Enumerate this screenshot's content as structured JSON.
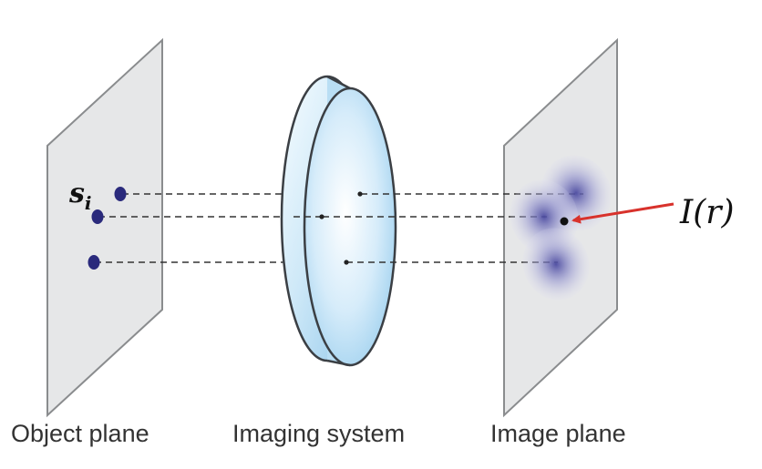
{
  "labels": {
    "object_plane": "Object plane",
    "imaging_system": "Imaging system",
    "image_plane": "Image plane",
    "source_symbol": "s",
    "source_subscript": "i",
    "intensity_label": "I(r)"
  },
  "colors": {
    "plane_fill": "#e6e7e8",
    "plane_stroke": "#8a8c8e",
    "point_source": "#2a2a7c",
    "lens_light": "#f2fbff",
    "lens_dark": "#9fd0ee",
    "lens_stroke": "#3b3f44",
    "psf_blob": "#5a5aa8",
    "arrow": "#d8322c"
  }
}
